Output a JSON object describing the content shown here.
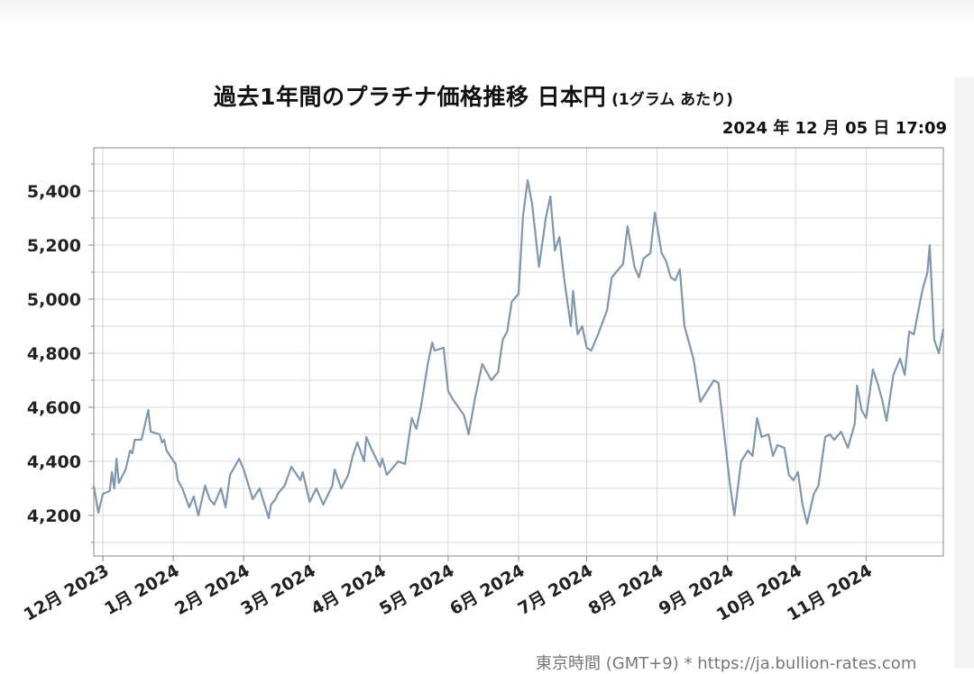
{
  "header": {
    "title": "過去1年間のプラチナ価格推移 日本円",
    "unit_note": "(1グラム あたり)",
    "timestamp": "2024 年 12 月 05 日 17:09"
  },
  "footer": {
    "note": "東京時間 (GMT+9) * https://ja.bullion-rates.com"
  },
  "colors": {
    "line": "#7f97b1",
    "grid": "#d9d9d9",
    "axis": "#888888"
  },
  "chart_data": {
    "type": "line",
    "title": "過去1年間のプラチナ価格推移 日本円",
    "xlabel": "",
    "ylabel": "",
    "grid": true,
    "ylim": [
      4050,
      5560
    ],
    "x_range": [
      "2023-11-27",
      "2024-12-05"
    ],
    "y_ticks": [
      4200,
      4400,
      4600,
      4800,
      5000,
      5200,
      5400
    ],
    "y_tick_labels": [
      "4,200",
      "4,400",
      "4,600",
      "4,800",
      "5,000",
      "5,200",
      "5,400"
    ],
    "x_ticks": [
      "2023-12-01",
      "2024-01-01",
      "2024-02-01",
      "2024-03-01",
      "2024-04-01",
      "2024-05-01",
      "2024-06-01",
      "2024-07-01",
      "2024-08-01",
      "2024-09-01",
      "2024-10-01",
      "2024-11-01"
    ],
    "x_tick_labels": [
      "12月 2023",
      "1月 2024",
      "2月 2024",
      "3月 2024",
      "4月 2024",
      "5月 2024",
      "6月 2024",
      "7月 2024",
      "8月 2024",
      "9月 2024",
      "10月 2024",
      "11月 2024"
    ],
    "series": [
      {
        "points": [
          [
            "2023-11-27",
            4310
          ],
          [
            "2023-11-29",
            4210
          ],
          [
            "2023-12-01",
            4280
          ],
          [
            "2023-12-04",
            4290
          ],
          [
            "2023-12-05",
            4360
          ],
          [
            "2023-12-06",
            4300
          ],
          [
            "2023-12-07",
            4410
          ],
          [
            "2023-12-08",
            4320
          ],
          [
            "2023-12-11",
            4370
          ],
          [
            "2023-12-13",
            4440
          ],
          [
            "2023-12-14",
            4430
          ],
          [
            "2023-12-15",
            4480
          ],
          [
            "2023-12-18",
            4480
          ],
          [
            "2023-12-21",
            4590
          ],
          [
            "2023-12-22",
            4510
          ],
          [
            "2023-12-26",
            4500
          ],
          [
            "2023-12-27",
            4470
          ],
          [
            "2023-12-28",
            4480
          ],
          [
            "2023-12-29",
            4440
          ],
          [
            "2024-01-02",
            4390
          ],
          [
            "2024-01-03",
            4330
          ],
          [
            "2024-01-05",
            4300
          ],
          [
            "2024-01-08",
            4230
          ],
          [
            "2024-01-10",
            4270
          ],
          [
            "2024-01-12",
            4200
          ],
          [
            "2024-01-15",
            4310
          ],
          [
            "2024-01-17",
            4260
          ],
          [
            "2024-01-19",
            4240
          ],
          [
            "2024-01-22",
            4300
          ],
          [
            "2024-01-24",
            4230
          ],
          [
            "2024-01-26",
            4350
          ],
          [
            "2024-01-30",
            4410
          ],
          [
            "2024-02-01",
            4370
          ],
          [
            "2024-02-05",
            4260
          ],
          [
            "2024-02-08",
            4300
          ],
          [
            "2024-02-12",
            4190
          ],
          [
            "2024-02-13",
            4240
          ],
          [
            "2024-02-15",
            4260
          ],
          [
            "2024-02-16",
            4280
          ],
          [
            "2024-02-19",
            4310
          ],
          [
            "2024-02-22",
            4380
          ],
          [
            "2024-02-26",
            4330
          ],
          [
            "2024-02-27",
            4360
          ],
          [
            "2024-03-01",
            4250
          ],
          [
            "2024-03-04",
            4300
          ],
          [
            "2024-03-07",
            4240
          ],
          [
            "2024-03-11",
            4310
          ],
          [
            "2024-03-12",
            4370
          ],
          [
            "2024-03-15",
            4300
          ],
          [
            "2024-03-18",
            4350
          ],
          [
            "2024-03-20",
            4420
          ],
          [
            "2024-03-22",
            4470
          ],
          [
            "2024-03-25",
            4400
          ],
          [
            "2024-03-26",
            4490
          ],
          [
            "2024-03-28",
            4450
          ],
          [
            "2024-04-01",
            4380
          ],
          [
            "2024-04-02",
            4410
          ],
          [
            "2024-04-04",
            4350
          ],
          [
            "2024-04-09",
            4400
          ],
          [
            "2024-04-12",
            4390
          ],
          [
            "2024-04-15",
            4560
          ],
          [
            "2024-04-17",
            4520
          ],
          [
            "2024-04-19",
            4600
          ],
          [
            "2024-04-22",
            4760
          ],
          [
            "2024-04-24",
            4840
          ],
          [
            "2024-04-25",
            4810
          ],
          [
            "2024-04-29",
            4820
          ],
          [
            "2024-05-01",
            4660
          ],
          [
            "2024-05-03",
            4630
          ],
          [
            "2024-05-08",
            4570
          ],
          [
            "2024-05-10",
            4500
          ],
          [
            "2024-05-13",
            4640
          ],
          [
            "2024-05-16",
            4760
          ],
          [
            "2024-05-20",
            4700
          ],
          [
            "2024-05-23",
            4730
          ],
          [
            "2024-05-25",
            4850
          ],
          [
            "2024-05-27",
            4880
          ],
          [
            "2024-05-29",
            4990
          ],
          [
            "2024-06-01",
            5020
          ],
          [
            "2024-06-03",
            5310
          ],
          [
            "2024-06-05",
            5440
          ],
          [
            "2024-06-07",
            5350
          ],
          [
            "2024-06-10",
            5120
          ],
          [
            "2024-06-13",
            5300
          ],
          [
            "2024-06-15",
            5380
          ],
          [
            "2024-06-17",
            5180
          ],
          [
            "2024-06-19",
            5230
          ],
          [
            "2024-06-21",
            5080
          ],
          [
            "2024-06-24",
            4900
          ],
          [
            "2024-06-25",
            5030
          ],
          [
            "2024-06-27",
            4870
          ],
          [
            "2024-06-29",
            4900
          ],
          [
            "2024-07-01",
            4820
          ],
          [
            "2024-07-03",
            4810
          ],
          [
            "2024-07-06",
            4870
          ],
          [
            "2024-07-10",
            4960
          ],
          [
            "2024-07-12",
            5080
          ],
          [
            "2024-07-15",
            5110
          ],
          [
            "2024-07-17",
            5130
          ],
          [
            "2024-07-19",
            5270
          ],
          [
            "2024-07-22",
            5120
          ],
          [
            "2024-07-24",
            5080
          ],
          [
            "2024-07-26",
            5150
          ],
          [
            "2024-07-29",
            5170
          ],
          [
            "2024-07-31",
            5320
          ],
          [
            "2024-08-03",
            5170
          ],
          [
            "2024-08-05",
            5140
          ],
          [
            "2024-08-07",
            5080
          ],
          [
            "2024-08-09",
            5070
          ],
          [
            "2024-08-11",
            5110
          ],
          [
            "2024-08-13",
            4900
          ],
          [
            "2024-08-17",
            4780
          ],
          [
            "2024-08-20",
            4620
          ],
          [
            "2024-08-23",
            4660
          ],
          [
            "2024-08-26",
            4700
          ],
          [
            "2024-08-28",
            4690
          ],
          [
            "2024-09-02",
            4320
          ],
          [
            "2024-09-04",
            4200
          ],
          [
            "2024-09-07",
            4400
          ],
          [
            "2024-09-10",
            4440
          ],
          [
            "2024-09-12",
            4420
          ],
          [
            "2024-09-14",
            4560
          ],
          [
            "2024-09-16",
            4490
          ],
          [
            "2024-09-19",
            4500
          ],
          [
            "2024-09-21",
            4420
          ],
          [
            "2024-09-23",
            4460
          ],
          [
            "2024-09-26",
            4450
          ],
          [
            "2024-09-28",
            4350
          ],
          [
            "2024-09-30",
            4330
          ],
          [
            "2024-10-02",
            4360
          ],
          [
            "2024-10-04",
            4240
          ],
          [
            "2024-10-06",
            4170
          ],
          [
            "2024-10-09",
            4280
          ],
          [
            "2024-10-11",
            4310
          ],
          [
            "2024-10-14",
            4490
          ],
          [
            "2024-10-16",
            4500
          ],
          [
            "2024-10-18",
            4480
          ],
          [
            "2024-10-21",
            4510
          ],
          [
            "2024-10-24",
            4450
          ],
          [
            "2024-10-27",
            4540
          ],
          [
            "2024-10-28",
            4680
          ],
          [
            "2024-10-30",
            4590
          ],
          [
            "2024-11-01",
            4560
          ],
          [
            "2024-11-04",
            4740
          ],
          [
            "2024-11-06",
            4690
          ],
          [
            "2024-11-08",
            4630
          ],
          [
            "2024-11-10",
            4550
          ],
          [
            "2024-11-13",
            4720
          ],
          [
            "2024-11-16",
            4780
          ],
          [
            "2024-11-18",
            4720
          ],
          [
            "2024-11-20",
            4880
          ],
          [
            "2024-11-22",
            4870
          ],
          [
            "2024-11-25",
            5000
          ],
          [
            "2024-11-26",
            5040
          ],
          [
            "2024-11-28",
            5100
          ],
          [
            "2024-11-29",
            5200
          ],
          [
            "2024-12-01",
            4850
          ],
          [
            "2024-12-03",
            4800
          ],
          [
            "2024-12-05",
            4890
          ]
        ]
      }
    ]
  }
}
